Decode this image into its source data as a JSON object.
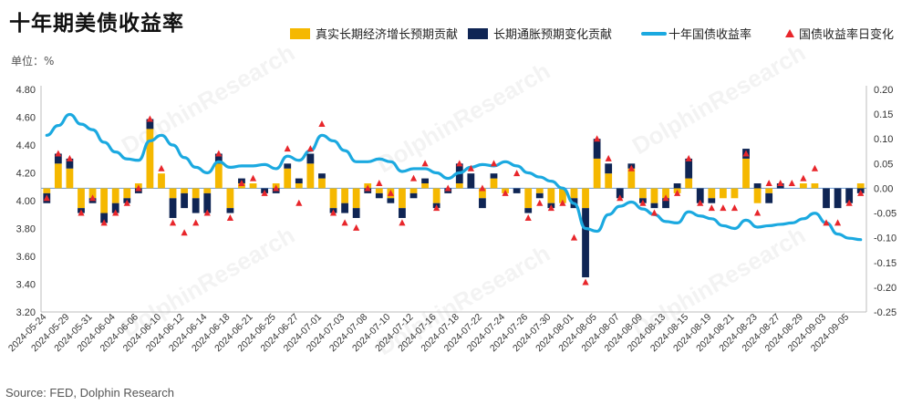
{
  "title": "十年期美债收益率",
  "unit_label": "单位：%",
  "source": "Source: FED, Dolphin Research",
  "colors": {
    "real_growth": "#F5B800",
    "inflation": "#0F2554",
    "yield_line": "#1BA9E0",
    "daily_change": "#E8262B",
    "zero_line": "#7EA6D8"
  },
  "chart_data": {
    "type": "bar",
    "stacked": true,
    "title": "十年期美债收益率",
    "xlabel": "",
    "ylabel": "单位：%",
    "ylim": [
      3.2,
      4.8
    ],
    "y2lim": [
      -0.25,
      0.2
    ],
    "yticks": [
      "4.80",
      "4.60",
      "4.40",
      "4.20",
      "4.00",
      "3.80",
      "3.60",
      "3.40",
      "3.20"
    ],
    "y2ticks": [
      "0.20",
      "0.15",
      "0.10",
      "0.05",
      "0.00",
      "-0.05",
      "-0.10",
      "-0.15",
      "-0.20",
      "-0.25"
    ],
    "grid": false,
    "legend_position": "top",
    "x_tick_labels": [
      "2024-05-24",
      "2024-05-29",
      "2024-05-31",
      "2024-06-04",
      "2024-06-06",
      "2024-06-10",
      "2024-06-12",
      "2024-06-14",
      "2024-06-18",
      "2024-06-21",
      "2024-06-25",
      "2024-06-27",
      "2024-07-01",
      "2024-07-03",
      "2024-07-08",
      "2024-07-10",
      "2024-07-12",
      "2024-07-16",
      "2024-07-18",
      "2024-07-22",
      "2024-07-24",
      "2024-07-26",
      "2024-07-30",
      "2024-08-01",
      "2024-08-05",
      "2024-08-07",
      "2024-08-09",
      "2024-08-13",
      "2024-08-15",
      "2024-08-19",
      "2024-08-21",
      "2024-08-23",
      "2024-08-27",
      "2024-08-29",
      "2024-09-03",
      "2024-09-05"
    ],
    "dates": [
      "2024-05-24",
      "2024-05-28",
      "2024-05-29",
      "2024-05-30",
      "2024-05-31",
      "2024-06-03",
      "2024-06-04",
      "2024-06-05",
      "2024-06-06",
      "2024-06-07",
      "2024-06-10",
      "2024-06-11",
      "2024-06-12",
      "2024-06-13",
      "2024-06-14",
      "2024-06-17",
      "2024-06-18",
      "2024-06-20",
      "2024-06-21",
      "2024-06-24",
      "2024-06-25",
      "2024-06-26",
      "2024-06-27",
      "2024-06-28",
      "2024-07-01",
      "2024-07-02",
      "2024-07-03",
      "2024-07-05",
      "2024-07-08",
      "2024-07-09",
      "2024-07-10",
      "2024-07-11",
      "2024-07-12",
      "2024-07-15",
      "2024-07-16",
      "2024-07-17",
      "2024-07-18",
      "2024-07-19",
      "2024-07-22",
      "2024-07-23",
      "2024-07-24",
      "2024-07-25",
      "2024-07-26",
      "2024-07-29",
      "2024-07-30",
      "2024-07-31",
      "2024-08-01",
      "2024-08-02",
      "2024-08-05",
      "2024-08-06",
      "2024-08-07",
      "2024-08-08",
      "2024-08-09",
      "2024-08-12",
      "2024-08-13",
      "2024-08-14",
      "2024-08-15",
      "2024-08-16",
      "2024-08-19",
      "2024-08-20",
      "2024-08-21",
      "2024-08-22",
      "2024-08-23",
      "2024-08-26",
      "2024-08-27",
      "2024-08-28",
      "2024-08-29",
      "2024-08-30",
      "2024-09-03",
      "2024-09-04",
      "2024-09-05",
      "2024-09-06"
    ],
    "series": [
      {
        "name": "真实长期经济增长预期贡献",
        "axis": "right",
        "values": [
          -0.01,
          0.05,
          0.04,
          -0.04,
          -0.02,
          -0.05,
          -0.03,
          -0.02,
          0.01,
          0.12,
          0.03,
          -0.02,
          -0.01,
          -0.02,
          -0.01,
          0.05,
          -0.04,
          0.01,
          0.01,
          0.0,
          0.01,
          0.04,
          0.01,
          0.05,
          0.02,
          -0.04,
          -0.03,
          -0.04,
          0.01,
          -0.01,
          -0.02,
          -0.04,
          -0.01,
          0.01,
          -0.03,
          0.0,
          0.01,
          0.0,
          -0.02,
          0.02,
          -0.01,
          0.0,
          -0.04,
          -0.01,
          -0.03,
          -0.03,
          -0.02,
          -0.04,
          0.06,
          0.03,
          0.0,
          0.04,
          -0.02,
          -0.03,
          -0.02,
          -0.01,
          0.02,
          0.0,
          -0.02,
          -0.02,
          -0.02,
          0.06,
          -0.03,
          -0.01,
          0.0,
          0.0,
          0.01,
          0.01,
          0.0,
          0.0,
          0.0,
          0.01
        ]
      },
      {
        "name": "长期通胀预期变化贡献",
        "axis": "right",
        "values": [
          -0.02,
          0.02,
          0.02,
          -0.01,
          -0.01,
          -0.02,
          -0.02,
          -0.01,
          -0.01,
          0.02,
          0.0,
          -0.04,
          -0.03,
          -0.03,
          -0.04,
          0.02,
          -0.01,
          0.01,
          0.0,
          -0.01,
          -0.01,
          0.01,
          0.01,
          0.02,
          0.01,
          -0.01,
          -0.02,
          -0.02,
          -0.01,
          -0.01,
          -0.01,
          -0.02,
          -0.01,
          0.01,
          -0.01,
          -0.01,
          0.04,
          0.03,
          -0.02,
          0.01,
          0.0,
          -0.01,
          -0.01,
          -0.01,
          -0.01,
          0.0,
          -0.02,
          -0.14,
          0.04,
          0.02,
          -0.02,
          0.01,
          -0.01,
          -0.01,
          -0.02,
          0.01,
          0.04,
          -0.03,
          -0.01,
          0.0,
          0.0,
          0.02,
          0.01,
          -0.02,
          0.01,
          0.0,
          0.0,
          0.0,
          -0.04,
          -0.04,
          -0.03,
          -0.01
        ]
      },
      {
        "name": "十年国债收益率",
        "axis": "left",
        "values": [
          4.47,
          4.54,
          4.62,
          4.55,
          4.51,
          4.42,
          4.35,
          4.3,
          4.29,
          4.43,
          4.47,
          4.4,
          4.31,
          4.24,
          4.2,
          4.28,
          4.24,
          4.25,
          4.25,
          4.26,
          4.23,
          4.32,
          4.29,
          4.36,
          4.47,
          4.43,
          4.36,
          4.28,
          4.28,
          4.3,
          4.28,
          4.21,
          4.23,
          4.23,
          4.2,
          4.16,
          4.2,
          4.24,
          4.26,
          4.25,
          4.28,
          4.25,
          4.2,
          4.17,
          4.14,
          4.09,
          3.98,
          3.8,
          3.78,
          3.9,
          3.96,
          3.99,
          3.94,
          3.9,
          3.85,
          3.84,
          3.92,
          3.89,
          3.87,
          3.82,
          3.8,
          3.86,
          3.81,
          3.82,
          3.83,
          3.84,
          3.87,
          3.91,
          3.84,
          3.76,
          3.73,
          3.72
        ]
      },
      {
        "name": "国债收益率日变化",
        "axis": "right",
        "values": [
          -0.02,
          0.07,
          0.06,
          -0.05,
          -0.02,
          -0.07,
          -0.05,
          -0.03,
          0.0,
          0.14,
          0.04,
          -0.07,
          -0.09,
          -0.07,
          -0.05,
          0.07,
          -0.06,
          0.01,
          0.02,
          -0.01,
          0.0,
          0.08,
          -0.03,
          0.08,
          0.13,
          -0.05,
          -0.07,
          -0.08,
          0.0,
          0.01,
          -0.01,
          -0.07,
          0.02,
          0.05,
          -0.04,
          0.0,
          0.05,
          0.04,
          0.0,
          0.05,
          -0.01,
          0.03,
          -0.06,
          -0.03,
          -0.04,
          -0.03,
          -0.1,
          -0.19,
          0.1,
          0.06,
          -0.02,
          0.04,
          -0.03,
          -0.05,
          -0.02,
          -0.01,
          0.06,
          -0.03,
          -0.04,
          -0.04,
          -0.04,
          0.07,
          -0.05,
          0.01,
          0.01,
          0.01,
          0.02,
          0.04,
          -0.07,
          -0.07,
          -0.03,
          -0.01
        ]
      }
    ]
  }
}
